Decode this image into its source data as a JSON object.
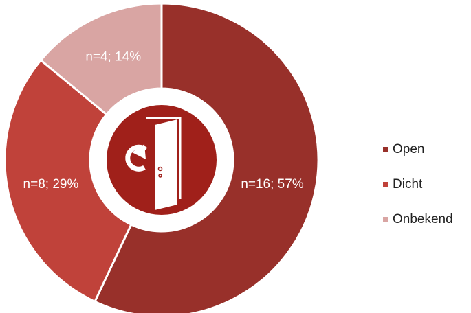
{
  "chart_data": {
    "type": "donut",
    "categories": [
      "Open",
      "Dicht",
      "Onbekend"
    ],
    "values": [
      57,
      29,
      14
    ],
    "value_labels": [
      "n=16; 57%",
      "n=8; 29%",
      "n=4; 14%"
    ],
    "colors": [
      "#98302a",
      "#c0423a",
      "#d9a5a3"
    ],
    "legend": "right"
  }
}
